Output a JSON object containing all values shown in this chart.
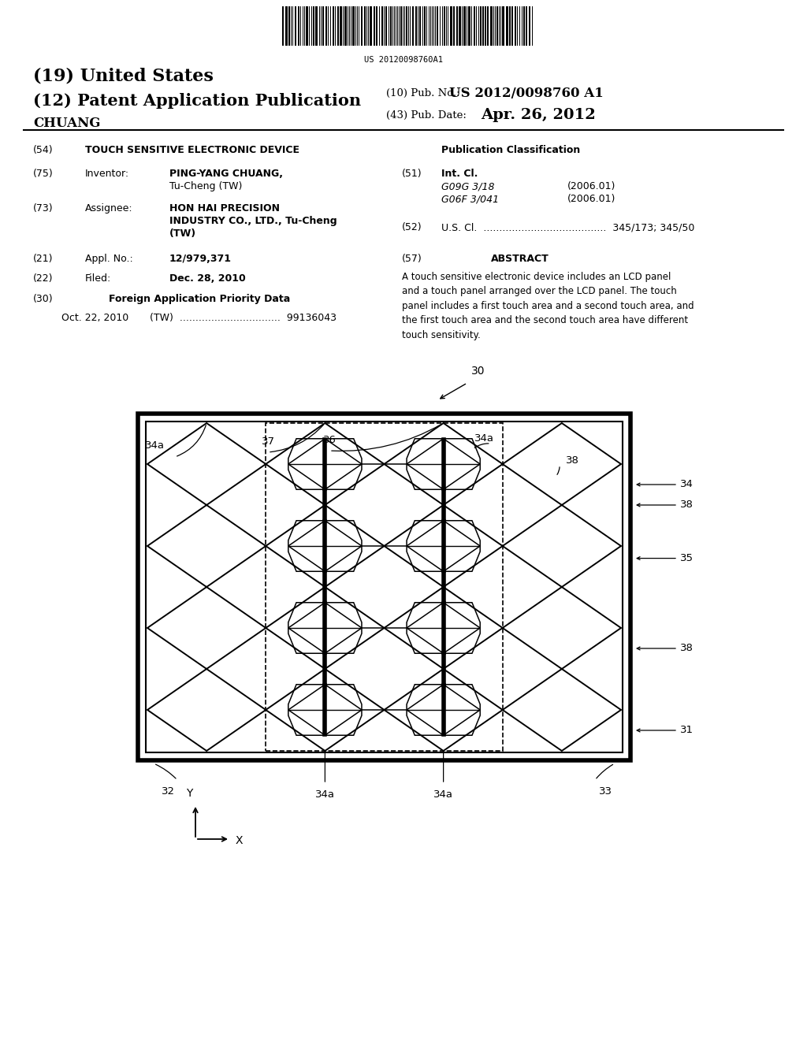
{
  "background_color": "#ffffff",
  "barcode_text": "US 20120098760A1",
  "header": {
    "line19": "(19) United States",
    "line12_bold": "(12) Patent Application Publication",
    "pub_no_label": "(10) Pub. No.:",
    "pub_no_value": "US 2012/0098760 A1",
    "pub_date_label": "(43) Pub. Date:",
    "pub_date_value": "Apr. 26, 2012",
    "applicant": "CHUANG"
  },
  "left_col": {
    "f54_label": "(54)",
    "f54_value": "TOUCH SENSITIVE ELECTRONIC DEVICE",
    "f75_label": "(75)",
    "f75_key": "Inventor:",
    "f75_name": "PING-YANG CHUANG,",
    "f75_loc": "Tu-Cheng (TW)",
    "f73_label": "(73)",
    "f73_key": "Assignee:",
    "f73_v1": "HON HAI PRECISION",
    "f73_v2": "INDUSTRY CO., LTD., Tu-Cheng",
    "f73_v3": "(TW)",
    "f21_label": "(21)",
    "f21_key": "Appl. No.:",
    "f21_val": "12/979,371",
    "f22_label": "(22)",
    "f22_key": "Filed:",
    "f22_val": "Dec. 28, 2010",
    "f30_label": "(30)",
    "f30_key": "Foreign Application Priority Data",
    "f30_date": "Oct. 22, 2010",
    "f30_country": "(TW)",
    "f30_num": "99136043"
  },
  "right_col": {
    "pub_class": "Publication Classification",
    "f51_label": "(51)",
    "f51_key": "Int. Cl.",
    "f51_c1": "G09G 3/18",
    "f51_d1": "(2006.01)",
    "f51_c2": "G06F 3/041",
    "f51_d2": "(2006.01)",
    "f52_label": "(52)",
    "f52_key": "U.S. Cl.",
    "f52_val": "345/173; 345/50",
    "f57_label": "(57)",
    "f57_title": "ABSTRACT",
    "f57_text": "A touch sensitive electronic device includes an LCD panel\nand a touch panel arranged over the LCD panel. The touch\npanel includes a first touch area and a second touch area, and\nthe first touch area and the second touch area have different\ntouch sensitivity."
  },
  "diagram_labels": {
    "d30": "30",
    "d31": "31",
    "d32": "32",
    "d33": "33",
    "d34": "34",
    "d34a": "34a",
    "d35": "35",
    "d36": "36",
    "d37": "37",
    "d38": "38",
    "dY": "Y",
    "dX": "X"
  }
}
